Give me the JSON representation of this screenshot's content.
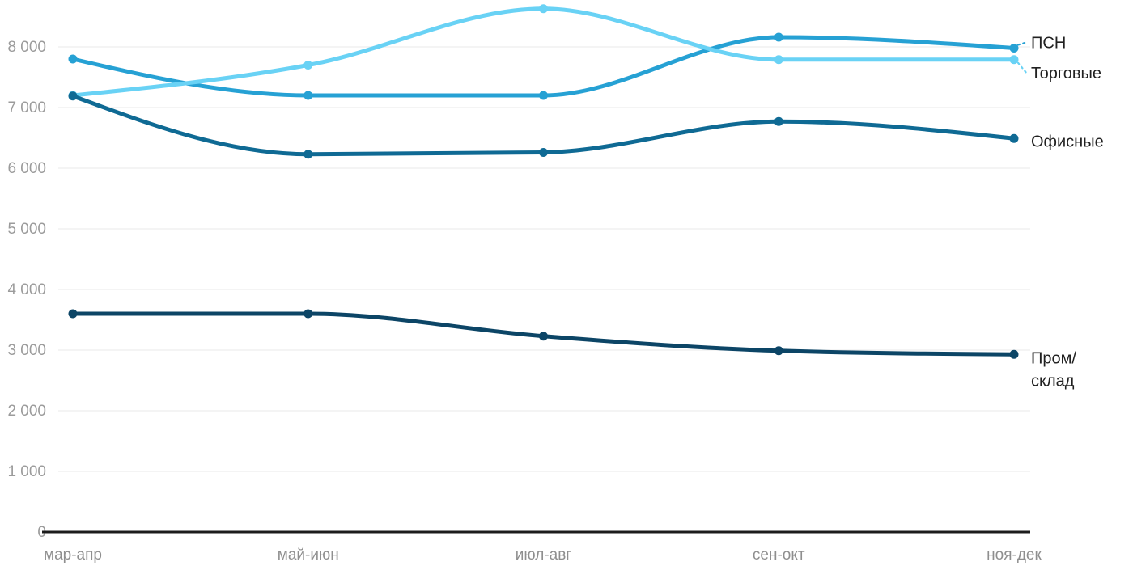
{
  "chart_data": {
    "type": "line",
    "title": "",
    "xlabel": "",
    "ylabel": "",
    "categories": [
      "мар-апр",
      "май-июн",
      "июл-авг",
      "сен-окт",
      "ноя-дек"
    ],
    "series": [
      {
        "key": "psn",
        "name": "ПСН",
        "color": "#26a1d4",
        "values": [
          7800,
          7200,
          7200,
          8160,
          7980
        ],
        "label_lines": [
          "ПСН"
        ]
      },
      {
        "key": "torgovye",
        "name": "Торговые",
        "color": "#69d2f5",
        "values": [
          7200,
          7700,
          8630,
          7790,
          7790
        ],
        "label_lines": [
          "Торговые"
        ]
      },
      {
        "key": "ofisnye",
        "name": "Офисные",
        "color": "#0f6a94",
        "values": [
          7190,
          6230,
          6260,
          6770,
          6490
        ],
        "label_lines": [
          "Офисные"
        ]
      },
      {
        "key": "prom-sklad",
        "name": "Пром/склад",
        "color": "#0c4566",
        "values": [
          3600,
          3600,
          3230,
          2990,
          2930
        ],
        "label_lines": [
          "Пром/",
          "склад"
        ]
      }
    ],
    "y_ticks": [
      {
        "value": 0,
        "label": "0"
      },
      {
        "value": 1000,
        "label": "1 000"
      },
      {
        "value": 2000,
        "label": "2 000"
      },
      {
        "value": 3000,
        "label": "3 000"
      },
      {
        "value": 4000,
        "label": "4 000"
      },
      {
        "value": 5000,
        "label": "5 000"
      },
      {
        "value": 6000,
        "label": "6 000"
      },
      {
        "value": 7000,
        "label": "7 000"
      },
      {
        "value": 8000,
        "label": "8 000"
      }
    ],
    "ylim": [
      0,
      8000
    ],
    "grid": true,
    "legend_position": "right-inline",
    "marker": "circle",
    "line_style": "smooth",
    "colors": {
      "background": "#ffffff",
      "axis": "#1c1c1c",
      "gridline": "#e8e8e8",
      "tick_text": "#9b9b9b",
      "label_text": "#212121"
    }
  }
}
